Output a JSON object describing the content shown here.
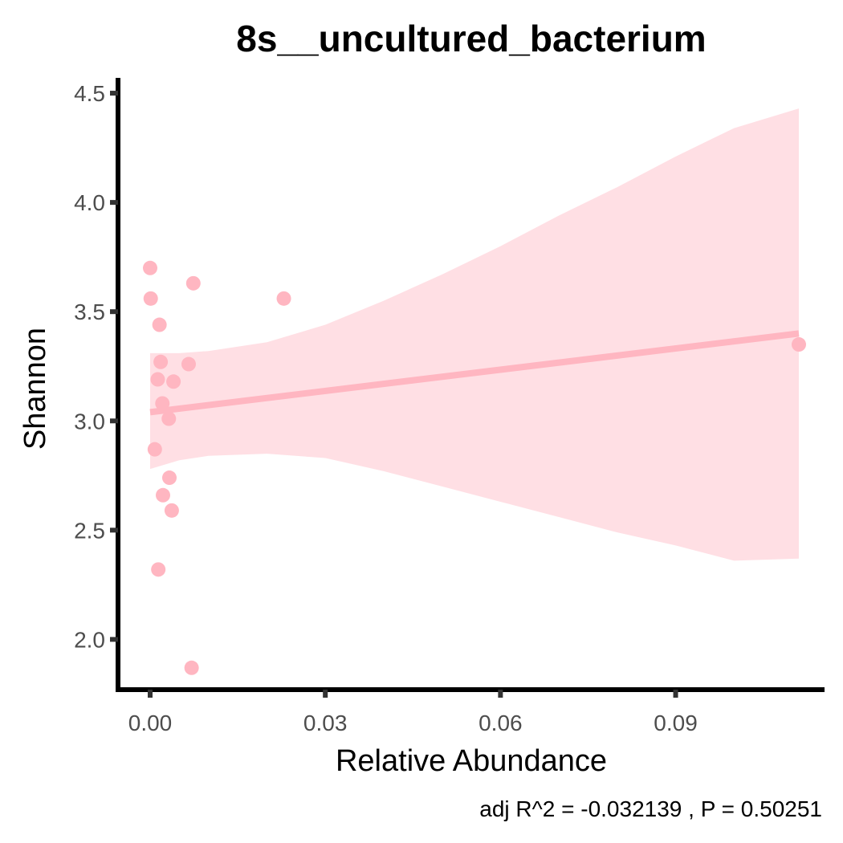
{
  "chart_data": {
    "type": "scatter",
    "title": "8s__uncultured_bacterium",
    "xlabel": "Relative Abundance",
    "ylabel": "Shannon",
    "caption": "adj R^2 =  -0.032139 , P = 0.50251",
    "xlim": [
      -0.0055,
      0.1155
    ],
    "ylim": [
      1.77,
      4.57
    ],
    "x_ticks": [
      0.0,
      0.03,
      0.06,
      0.09
    ],
    "x_tick_labels": [
      "0.00",
      "0.03",
      "0.06",
      "0.09"
    ],
    "y_ticks": [
      2.0,
      2.5,
      3.0,
      3.5,
      4.0,
      4.5
    ],
    "y_tick_labels": [
      "2.0",
      "2.5",
      "3.0",
      "3.5",
      "4.0",
      "4.5"
    ],
    "grid": false,
    "point_color": "#ffb6c1",
    "line_color": "#ffb6c1",
    "band_color": "#ffdfe4",
    "points": [
      {
        "x": 0.0,
        "y": 3.7
      },
      {
        "x": 0.0001,
        "y": 3.56
      },
      {
        "x": 0.0074,
        "y": 3.63
      },
      {
        "x": 0.0229,
        "y": 3.56
      },
      {
        "x": 0.0016,
        "y": 3.44
      },
      {
        "x": 0.0018,
        "y": 3.27
      },
      {
        "x": 0.0066,
        "y": 3.26
      },
      {
        "x": 0.0013,
        "y": 3.19
      },
      {
        "x": 0.004,
        "y": 3.18
      },
      {
        "x": 0.0021,
        "y": 3.08
      },
      {
        "x": 0.0032,
        "y": 3.01
      },
      {
        "x": 0.0008,
        "y": 2.87
      },
      {
        "x": 0.0033,
        "y": 2.74
      },
      {
        "x": 0.0022,
        "y": 2.66
      },
      {
        "x": 0.0037,
        "y": 2.59
      },
      {
        "x": 0.0014,
        "y": 2.32
      },
      {
        "x": 0.0071,
        "y": 1.87
      },
      {
        "x": 0.1111,
        "y": 3.35
      }
    ],
    "fit_line": {
      "x": [
        0.0,
        0.1111
      ],
      "y": [
        3.04,
        3.4
      ]
    },
    "confidence_band": {
      "x": [
        0.0,
        0.005,
        0.01,
        0.02,
        0.03,
        0.04,
        0.05,
        0.06,
        0.07,
        0.08,
        0.09,
        0.1,
        0.1111
      ],
      "upper": [
        3.31,
        3.31,
        3.32,
        3.36,
        3.44,
        3.55,
        3.67,
        3.8,
        3.94,
        4.07,
        4.21,
        4.34,
        4.43
      ],
      "lower": [
        2.78,
        2.82,
        2.84,
        2.85,
        2.83,
        2.77,
        2.7,
        2.63,
        2.56,
        2.49,
        2.43,
        2.36,
        2.37
      ]
    }
  }
}
